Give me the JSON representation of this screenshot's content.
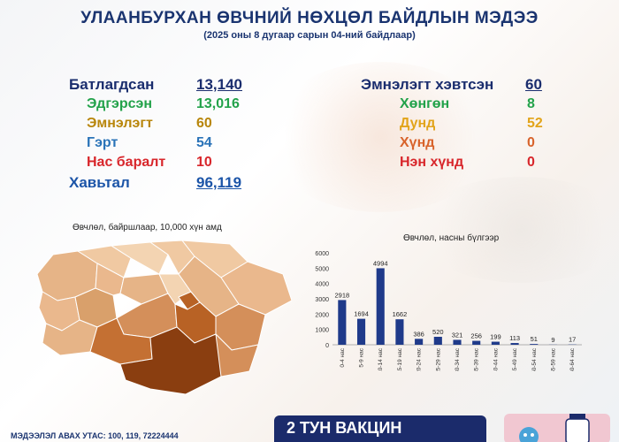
{
  "header": {
    "title": "УЛААНБУРХАН ӨВЧНИЙ НӨХЦӨЛ БАЙДЛЫН МЭДЭЭ",
    "subtitle": "(2025 оны 8 дугаар сарын 04-ний байдлаар)"
  },
  "stats_left": [
    {
      "label": "Батлагдсан",
      "value": "13,140",
      "color": "#1a2d6e"
    },
    {
      "label": "Эдгэрсэн",
      "value": "13,016",
      "color": "#22a24a"
    },
    {
      "label": "Эмнэлэгт",
      "value": "60",
      "color": "#b8860b"
    },
    {
      "label": "Гэрт",
      "value": "54",
      "color": "#2a73b8"
    },
    {
      "label": "Нас баралт",
      "value": "10",
      "color": "#d8262b"
    },
    {
      "label": "Хавьтал",
      "value": "96,119",
      "color": "#1c55a8"
    }
  ],
  "stats_right": [
    {
      "label": "Эмнэлэгт хэвтсэн",
      "value": "60",
      "color": "#1a2d6e"
    },
    {
      "label": "Хөнгөн",
      "value": "8",
      "color": "#22a24a"
    },
    {
      "label": "Дунд",
      "value": "52",
      "color": "#e2a41a"
    },
    {
      "label": "Хүнд",
      "value": "0",
      "color": "#d8632b"
    },
    {
      "label": "Нэн хүнд",
      "value": "0",
      "color": "#d8262b"
    }
  ],
  "map": {
    "label": "Өвчлөл, байршлаар, 10,000 хүн амд",
    "colors": [
      "#f6dcc0",
      "#eab88d",
      "#d48f5a",
      "#b86225",
      "#8a3e10"
    ]
  },
  "chart_data": {
    "type": "bar",
    "title": "Өвчлөл, насны бүлгээр",
    "categories": [
      "0-4 нас",
      "5-9 нас",
      "10-14 нас",
      "15-19 нас",
      "20-24 нас",
      "25-29 нас",
      "30-34 нас",
      "35-39 нас",
      "40-44 нас",
      "45-49 нас",
      "50-54 нас",
      "55-59 нас",
      "60-64 нас"
    ],
    "values": [
      2918,
      1694,
      4994,
      1662,
      386,
      520,
      321,
      256,
      199,
      113,
      51,
      9,
      17
    ],
    "yticks": [
      "0",
      "1000",
      "2000",
      "3000",
      "4000",
      "5000",
      "6000"
    ],
    "ylim": [
      0,
      6000
    ],
    "bar_color": "#1f3a8a"
  },
  "footer": {
    "phone_label": "МЭДЭЭЛЭЛ АВАХ УТАС: 100, 119, 72224444",
    "vaccine_title": "2 ТУН ВАКЦИН"
  }
}
